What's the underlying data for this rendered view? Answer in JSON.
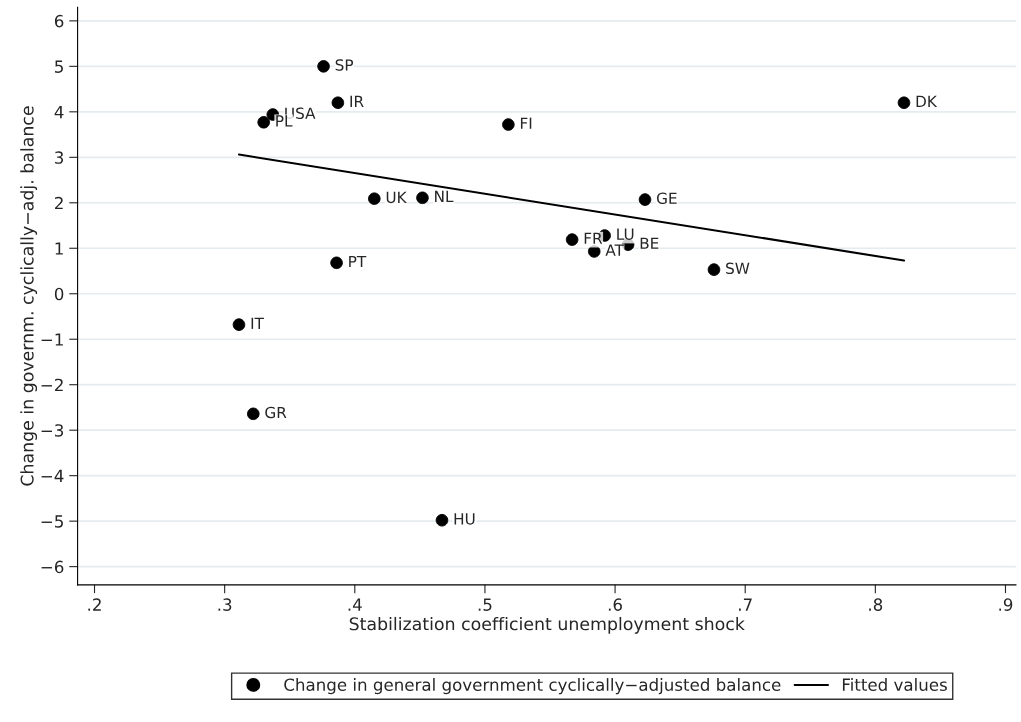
{
  "chart_data": {
    "type": "scatter",
    "xlabel": "Stabilization coefficient unemployment shock",
    "ylabel": "Change in governm. cyclically−adj. balance",
    "xlim": [
      0.187,
      0.908
    ],
    "ylim": [
      -6.4,
      6.3
    ],
    "xticks": [
      {
        "value": 0.2,
        "label": ".2"
      },
      {
        "value": 0.3,
        "label": ".3"
      },
      {
        "value": 0.4,
        "label": ".4"
      },
      {
        "value": 0.5,
        "label": ".5"
      },
      {
        "value": 0.6,
        "label": ".6"
      },
      {
        "value": 0.7,
        "label": ".7"
      },
      {
        "value": 0.8,
        "label": ".8"
      },
      {
        "value": 0.9,
        "label": ".9"
      }
    ],
    "yticks": [
      {
        "value": -6,
        "label": "−6"
      },
      {
        "value": -5,
        "label": "−5"
      },
      {
        "value": -4,
        "label": "−4"
      },
      {
        "value": -3,
        "label": "−3"
      },
      {
        "value": -2,
        "label": "−2"
      },
      {
        "value": -1,
        "label": "−1"
      },
      0,
      1,
      2,
      3,
      4,
      5,
      6
    ],
    "grid": "y",
    "legend": "bottom",
    "marker": "circle",
    "series": [
      {
        "name": "Change in general government cyclically−adjusted balance",
        "color": "#000000",
        "x": [
          0.376,
          0.337,
          0.33,
          0.387,
          0.518,
          0.822,
          0.415,
          0.452,
          0.623,
          0.567,
          0.592,
          0.61,
          0.584,
          0.676,
          0.386,
          0.311,
          0.322,
          0.467
        ],
        "values": [
          5.0,
          3.94,
          3.77,
          4.2,
          3.72,
          4.2,
          2.09,
          2.11,
          2.07,
          1.19,
          1.28,
          1.08,
          0.93,
          0.53,
          0.68,
          -0.68,
          -2.64,
          -4.98
        ]
      },
      {
        "name": "Fitted values",
        "type": "line",
        "color": "#000000",
        "marker": "none",
        "x": [
          0.311,
          0.822
        ],
        "values": [
          3.06,
          0.73
        ]
      }
    ],
    "annotations": [
      {
        "text": "SP",
        "x": 0.376,
        "y": 5.0
      },
      {
        "text": "USA",
        "x": 0.337,
        "y": 3.94
      },
      {
        "text": "PL",
        "x": 0.33,
        "y": 3.77
      },
      {
        "text": "IR",
        "x": 0.387,
        "y": 4.2
      },
      {
        "text": "FI",
        "x": 0.518,
        "y": 3.72
      },
      {
        "text": "DK",
        "x": 0.822,
        "y": 4.2
      },
      {
        "text": "UK",
        "x": 0.415,
        "y": 2.09
      },
      {
        "text": "NL",
        "x": 0.452,
        "y": 2.11
      },
      {
        "text": "GE",
        "x": 0.623,
        "y": 2.07
      },
      {
        "text": "FR",
        "x": 0.567,
        "y": 1.19
      },
      {
        "text": "LU",
        "x": 0.592,
        "y": 1.28
      },
      {
        "text": "BE",
        "x": 0.61,
        "y": 1.08
      },
      {
        "text": "AT",
        "x": 0.584,
        "y": 0.93
      },
      {
        "text": "SW",
        "x": 0.676,
        "y": 0.53
      },
      {
        "text": "PT",
        "x": 0.386,
        "y": 0.68
      },
      {
        "text": "IT",
        "x": 0.311,
        "y": -0.68
      },
      {
        "text": "GR",
        "x": 0.322,
        "y": -2.64
      },
      {
        "text": "HU",
        "x": 0.467,
        "y": -4.98
      }
    ]
  }
}
